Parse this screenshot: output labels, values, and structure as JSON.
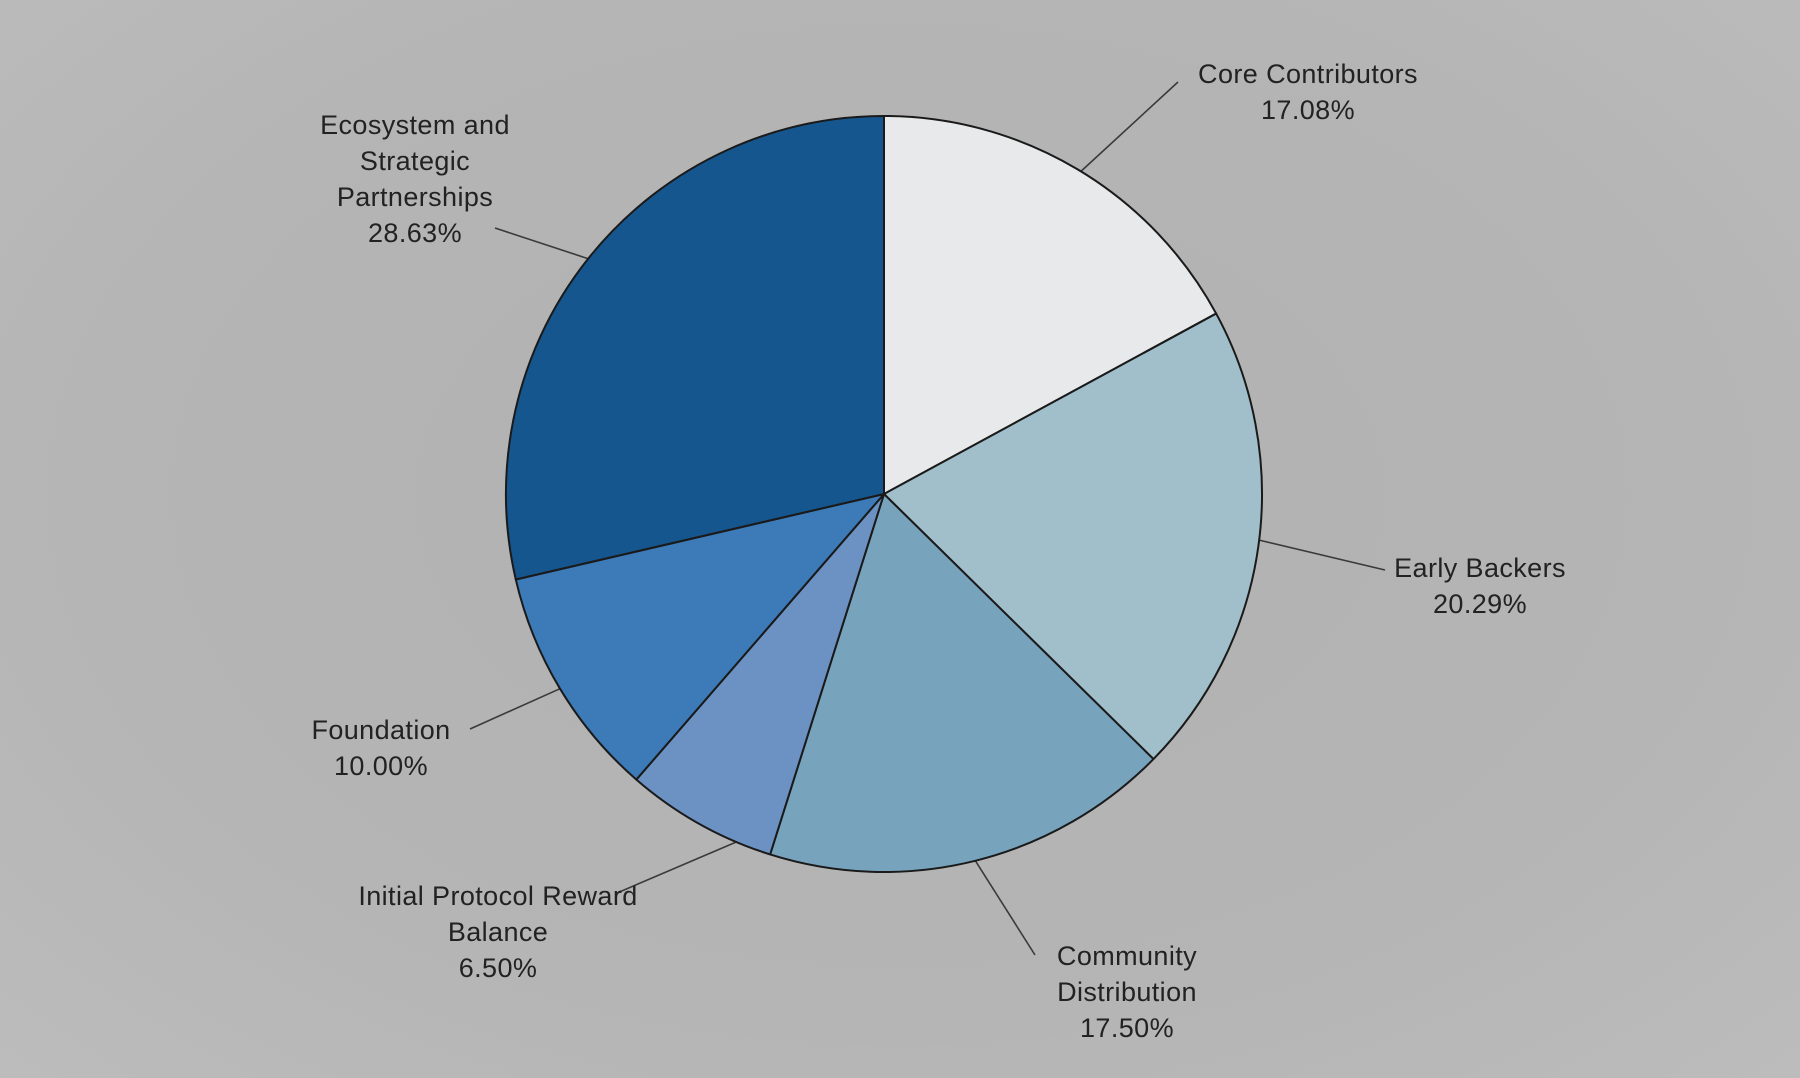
{
  "chart_data": {
    "type": "pie",
    "title": "",
    "legend_position": "none",
    "labels_outside": true,
    "background": "#b4b4b4",
    "stroke": "#1a1a1a",
    "start_angle_deg": 0,
    "direction": "clockwise",
    "slices": [
      {
        "label": "Core Contributors",
        "value": 17.08,
        "pct_label": "17.08%",
        "color": "#e7e9ea"
      },
      {
        "label": "Early Backers",
        "value": 20.29,
        "pct_label": "20.29%",
        "color": "#a0bfcb"
      },
      {
        "label": "Community Distribution",
        "value": 17.5,
        "pct_label": "17.50%",
        "color": "#77a3bd"
      },
      {
        "label": "Initial Protocol Reward Balance",
        "value": 6.5,
        "pct_label": "6.50%",
        "color": "#6b92c3"
      },
      {
        "label": "Foundation",
        "value": 10.0,
        "pct_label": "10.00%",
        "color": "#3c7ab8"
      },
      {
        "label": "Ecosystem and Strategic Partnerships",
        "value": 28.63,
        "pct_label": "28.63%",
        "color": "#15568e"
      }
    ]
  }
}
